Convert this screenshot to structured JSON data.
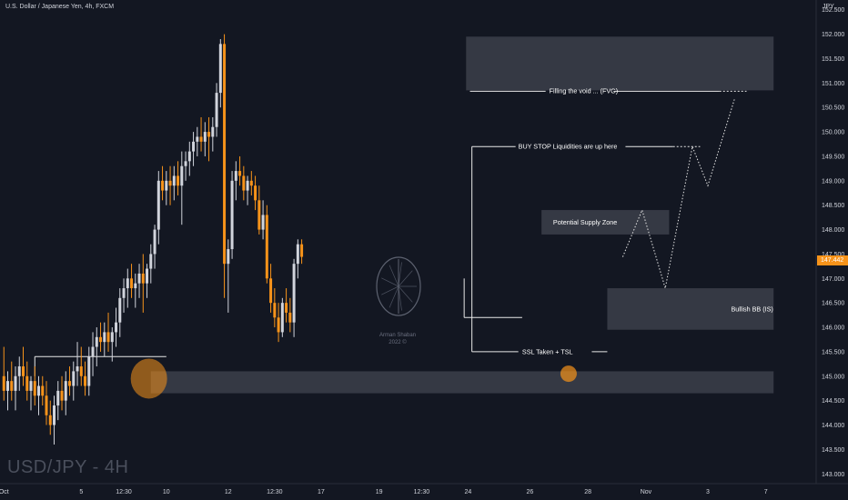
{
  "header": {
    "title": "U.S. Dollar / Japanese Yen, 4h, FXCM",
    "watermark": "USD/JPY - 4H",
    "currency": "JPY",
    "last_price": "147.442",
    "logo_name": "Arman Shaban",
    "logo_year": "2022 ©"
  },
  "colors": {
    "background": "#131722",
    "up": "#d1d4dc",
    "down": "#f7931a",
    "zone": "#3c3f4a",
    "highlight": "#f7931a"
  },
  "chart_data": {
    "type": "candlestick",
    "y_axis": {
      "ticks": [
        "152.500",
        "152.000",
        "151.500",
        "151.000",
        "150.500",
        "150.000",
        "149.500",
        "149.000",
        "148.500",
        "148.000",
        "147.500",
        "147.000",
        "146.500",
        "146.000",
        "145.500",
        "145.000",
        "144.500",
        "144.000",
        "143.500",
        "143.000"
      ],
      "ylim": [
        142.8,
        152.7
      ]
    },
    "x_axis": {
      "ticks": [
        {
          "label": "Oct",
          "x": 0
        },
        {
          "label": "5",
          "x": 20
        },
        {
          "label": "12:30",
          "x": 31
        },
        {
          "label": "10",
          "x": 42
        },
        {
          "label": "12",
          "x": 58
        },
        {
          "label": "12:30",
          "x": 70
        },
        {
          "label": "17",
          "x": 82
        },
        {
          "label": "19",
          "x": 97
        },
        {
          "label": "12:30",
          "x": 108
        },
        {
          "label": "24",
          "x": 120
        },
        {
          "label": "26",
          "x": 136
        },
        {
          "label": "28",
          "x": 151
        },
        {
          "label": "Nov",
          "x": 166
        },
        {
          "label": "3",
          "x": 182
        },
        {
          "label": "7",
          "x": 197
        }
      ],
      "xlim": [
        -1,
        210
      ]
    },
    "candles": [
      [
        145.0,
        145.6,
        144.5,
        144.7
      ],
      [
        144.7,
        145.1,
        144.3,
        144.9
      ],
      [
        144.9,
        145.3,
        144.5,
        144.7
      ],
      [
        144.7,
        145.2,
        144.3,
        145.0
      ],
      [
        145.0,
        145.4,
        144.7,
        145.2
      ],
      [
        145.2,
        145.6,
        144.8,
        145.0
      ],
      [
        145.0,
        145.3,
        144.5,
        144.7
      ],
      [
        144.7,
        145.0,
        144.3,
        144.9
      ],
      [
        144.9,
        145.2,
        144.4,
        144.6
      ],
      [
        144.6,
        145.0,
        144.2,
        144.8
      ],
      [
        144.8,
        145.0,
        144.4,
        144.6
      ],
      [
        144.6,
        144.9,
        144.0,
        144.2
      ],
      [
        144.2,
        144.5,
        143.8,
        144.0
      ],
      [
        144.0,
        144.6,
        143.6,
        144.4
      ],
      [
        144.4,
        144.9,
        144.1,
        144.7
      ],
      [
        144.7,
        145.0,
        144.3,
        144.5
      ],
      [
        144.5,
        145.1,
        144.2,
        144.9
      ],
      [
        144.9,
        145.2,
        144.6,
        144.8
      ],
      [
        144.8,
        145.3,
        144.5,
        145.1
      ],
      [
        145.1,
        145.7,
        144.8,
        145.2
      ],
      [
        145.2,
        145.6,
        144.8,
        145.0
      ],
      [
        145.0,
        145.3,
        144.6,
        144.8
      ],
      [
        144.8,
        145.6,
        144.6,
        145.4
      ],
      [
        145.4,
        145.9,
        145.0,
        145.6
      ],
      [
        145.6,
        146.0,
        145.2,
        145.8
      ],
      [
        145.8,
        146.1,
        145.5,
        145.7
      ],
      [
        145.7,
        146.1,
        145.4,
        145.9
      ],
      [
        145.9,
        146.3,
        145.5,
        145.7
      ],
      [
        145.7,
        146.0,
        145.3,
        145.9
      ],
      [
        145.9,
        146.4,
        145.6,
        146.1
      ],
      [
        146.1,
        146.8,
        145.8,
        146.6
      ],
      [
        146.6,
        147.0,
        146.3,
        146.8
      ],
      [
        146.8,
        147.2,
        146.4,
        147.0
      ],
      [
        147.0,
        147.3,
        146.6,
        146.8
      ],
      [
        146.8,
        147.1,
        146.4,
        146.9
      ],
      [
        146.9,
        147.3,
        146.6,
        147.1
      ],
      [
        147.1,
        147.5,
        146.3,
        146.9
      ],
      [
        146.9,
        147.3,
        146.6,
        147.2
      ],
      [
        147.2,
        147.7,
        146.9,
        147.5
      ],
      [
        147.5,
        148.1,
        147.2,
        148.0
      ],
      [
        148.0,
        149.2,
        147.7,
        149.0
      ],
      [
        149.0,
        149.3,
        148.6,
        148.8
      ],
      [
        148.8,
        149.2,
        148.5,
        149.0
      ],
      [
        149.0,
        149.3,
        148.5,
        148.9
      ],
      [
        148.9,
        149.3,
        148.6,
        149.1
      ],
      [
        149.1,
        149.4,
        148.7,
        148.9
      ],
      [
        148.9,
        149.6,
        148.1,
        149.3
      ],
      [
        149.3,
        149.6,
        149.0,
        149.4
      ],
      [
        149.4,
        149.8,
        149.1,
        149.6
      ],
      [
        149.6,
        150.0,
        149.3,
        149.8
      ],
      [
        149.8,
        150.1,
        149.5,
        149.9
      ],
      [
        149.9,
        150.3,
        149.6,
        149.8
      ],
      [
        149.8,
        150.2,
        149.5,
        150.0
      ],
      [
        150.0,
        150.3,
        149.4,
        149.9
      ],
      [
        149.9,
        150.3,
        149.6,
        150.1
      ],
      [
        150.1,
        151.0,
        149.9,
        150.8
      ],
      [
        150.8,
        151.9,
        150.5,
        151.8
      ],
      [
        151.8,
        152.0,
        146.6,
        147.3
      ],
      [
        147.3,
        147.8,
        146.3,
        147.6
      ],
      [
        147.6,
        149.2,
        147.4,
        149.0
      ],
      [
        149.0,
        149.4,
        148.6,
        149.2
      ],
      [
        149.2,
        149.5,
        148.9,
        149.1
      ],
      [
        149.1,
        149.3,
        148.6,
        148.8
      ],
      [
        148.8,
        149.1,
        148.5,
        149.0
      ],
      [
        149.0,
        149.2,
        148.7,
        148.9
      ],
      [
        148.9,
        149.1,
        148.4,
        148.6
      ],
      [
        148.6,
        148.9,
        147.9,
        148.0
      ],
      [
        148.0,
        148.6,
        147.8,
        148.3
      ],
      [
        148.3,
        148.5,
        146.9,
        147.0
      ],
      [
        147.0,
        147.3,
        146.3,
        146.5
      ],
      [
        146.5,
        146.8,
        146.0,
        146.2
      ],
      [
        146.2,
        146.5,
        145.7,
        145.9
      ],
      [
        145.9,
        146.6,
        145.8,
        146.5
      ],
      [
        146.5,
        146.8,
        146.1,
        146.3
      ],
      [
        146.3,
        146.6,
        145.9,
        146.1
      ],
      [
        146.1,
        147.4,
        145.8,
        147.3
      ],
      [
        147.3,
        147.8,
        147.0,
        147.7
      ],
      [
        147.7,
        147.8,
        147.3,
        147.442
      ]
    ],
    "candle_x": [
      0,
      1,
      2,
      3,
      4,
      5,
      6,
      7,
      8,
      9,
      10,
      11,
      12,
      13,
      14,
      15,
      16,
      17,
      18,
      19,
      20,
      21,
      22,
      23,
      24,
      25,
      26,
      27,
      28,
      29,
      30,
      31,
      32,
      33,
      34,
      35,
      36,
      37,
      38,
      39,
      40,
      41,
      42,
      43,
      44,
      45,
      46,
      47,
      48,
      49,
      50,
      51,
      52,
      53,
      54,
      55,
      56,
      57,
      58,
      59,
      60,
      61,
      62,
      63,
      64,
      65,
      66,
      67,
      68,
      69,
      70,
      71,
      72,
      73,
      74,
      75,
      76,
      77
    ],
    "zones": [
      {
        "label": "Filling the void ... (FVG)",
        "from": 151.95,
        "to": 150.85,
        "x0": 119.5,
        "x1": 199
      },
      {
        "label": "Potential Supply Zone",
        "from": 148.4,
        "to": 147.9,
        "x0": 139,
        "x1": 172
      },
      {
        "label": "Bullish BB (IS)",
        "from": 146.8,
        "to": 145.95,
        "x0": 156,
        "x1": 199
      },
      {
        "label": "",
        "from": 145.1,
        "to": 144.65,
        "x0": 38,
        "x1": 199
      }
    ],
    "annotations": [
      {
        "label": "BUY STOP Liquidities are up here",
        "price": 149.7
      },
      {
        "label": "SSL Taken + TSL",
        "price": 145.5
      }
    ],
    "projection": [
      [
        160,
        147.442
      ],
      [
        165,
        148.4
      ],
      [
        171,
        146.8
      ],
      [
        178,
        149.7
      ],
      [
        182,
        148.9
      ],
      [
        189,
        150.7
      ]
    ]
  }
}
